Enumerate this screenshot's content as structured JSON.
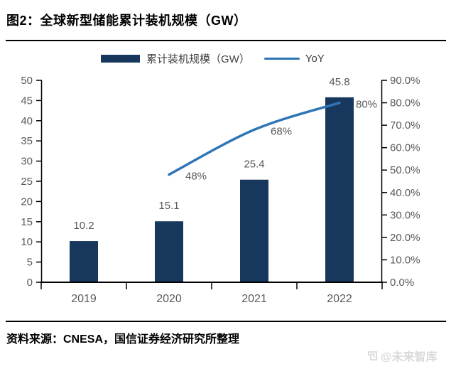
{
  "title": "图2：全球新型储能累计装机规模（GW）",
  "source": "资料来源：CNESA，国信证券经济研究所整理",
  "watermark": {
    "text": "@未来智库",
    "icon": "maze-logo-icon"
  },
  "colors": {
    "bar": "#17375D",
    "line": "#2E75B6",
    "axis_line": "#000000",
    "tick_label": "#595959",
    "data_label": "#595959"
  },
  "chart_data": {
    "type": "combo-bar-line",
    "title": "全球新型储能累计装机规模（GW）",
    "categories": [
      "2019",
      "2020",
      "2021",
      "2022"
    ],
    "series": [
      {
        "name": "累计装机规模（GW）",
        "type": "bar",
        "axis": "left",
        "color": "#17375D",
        "values": [
          10.2,
          15.1,
          25.4,
          45.8
        ],
        "point_labels": [
          "10.2",
          "15.1",
          "25.4",
          "45.8"
        ]
      },
      {
        "name": "YoY",
        "type": "line",
        "axis": "right",
        "color": "#2E75B6",
        "values": [
          null,
          48,
          68,
          80
        ],
        "point_labels": [
          "",
          "48%",
          "68%",
          "80%"
        ]
      }
    ],
    "left_axis": {
      "min": 0,
      "max": 50,
      "tick_labels": [
        "0",
        "5",
        "10",
        "15",
        "20",
        "25",
        "30",
        "35",
        "40",
        "45",
        "50"
      ]
    },
    "right_axis": {
      "min": 0,
      "max": 90,
      "tick_labels": [
        "0.0%",
        "10.0%",
        "20.0%",
        "30.0%",
        "40.0%",
        "50.0%",
        "60.0%",
        "70.0%",
        "80.0%",
        "90.0%"
      ]
    },
    "grid": false,
    "legend_position": "top-center"
  }
}
